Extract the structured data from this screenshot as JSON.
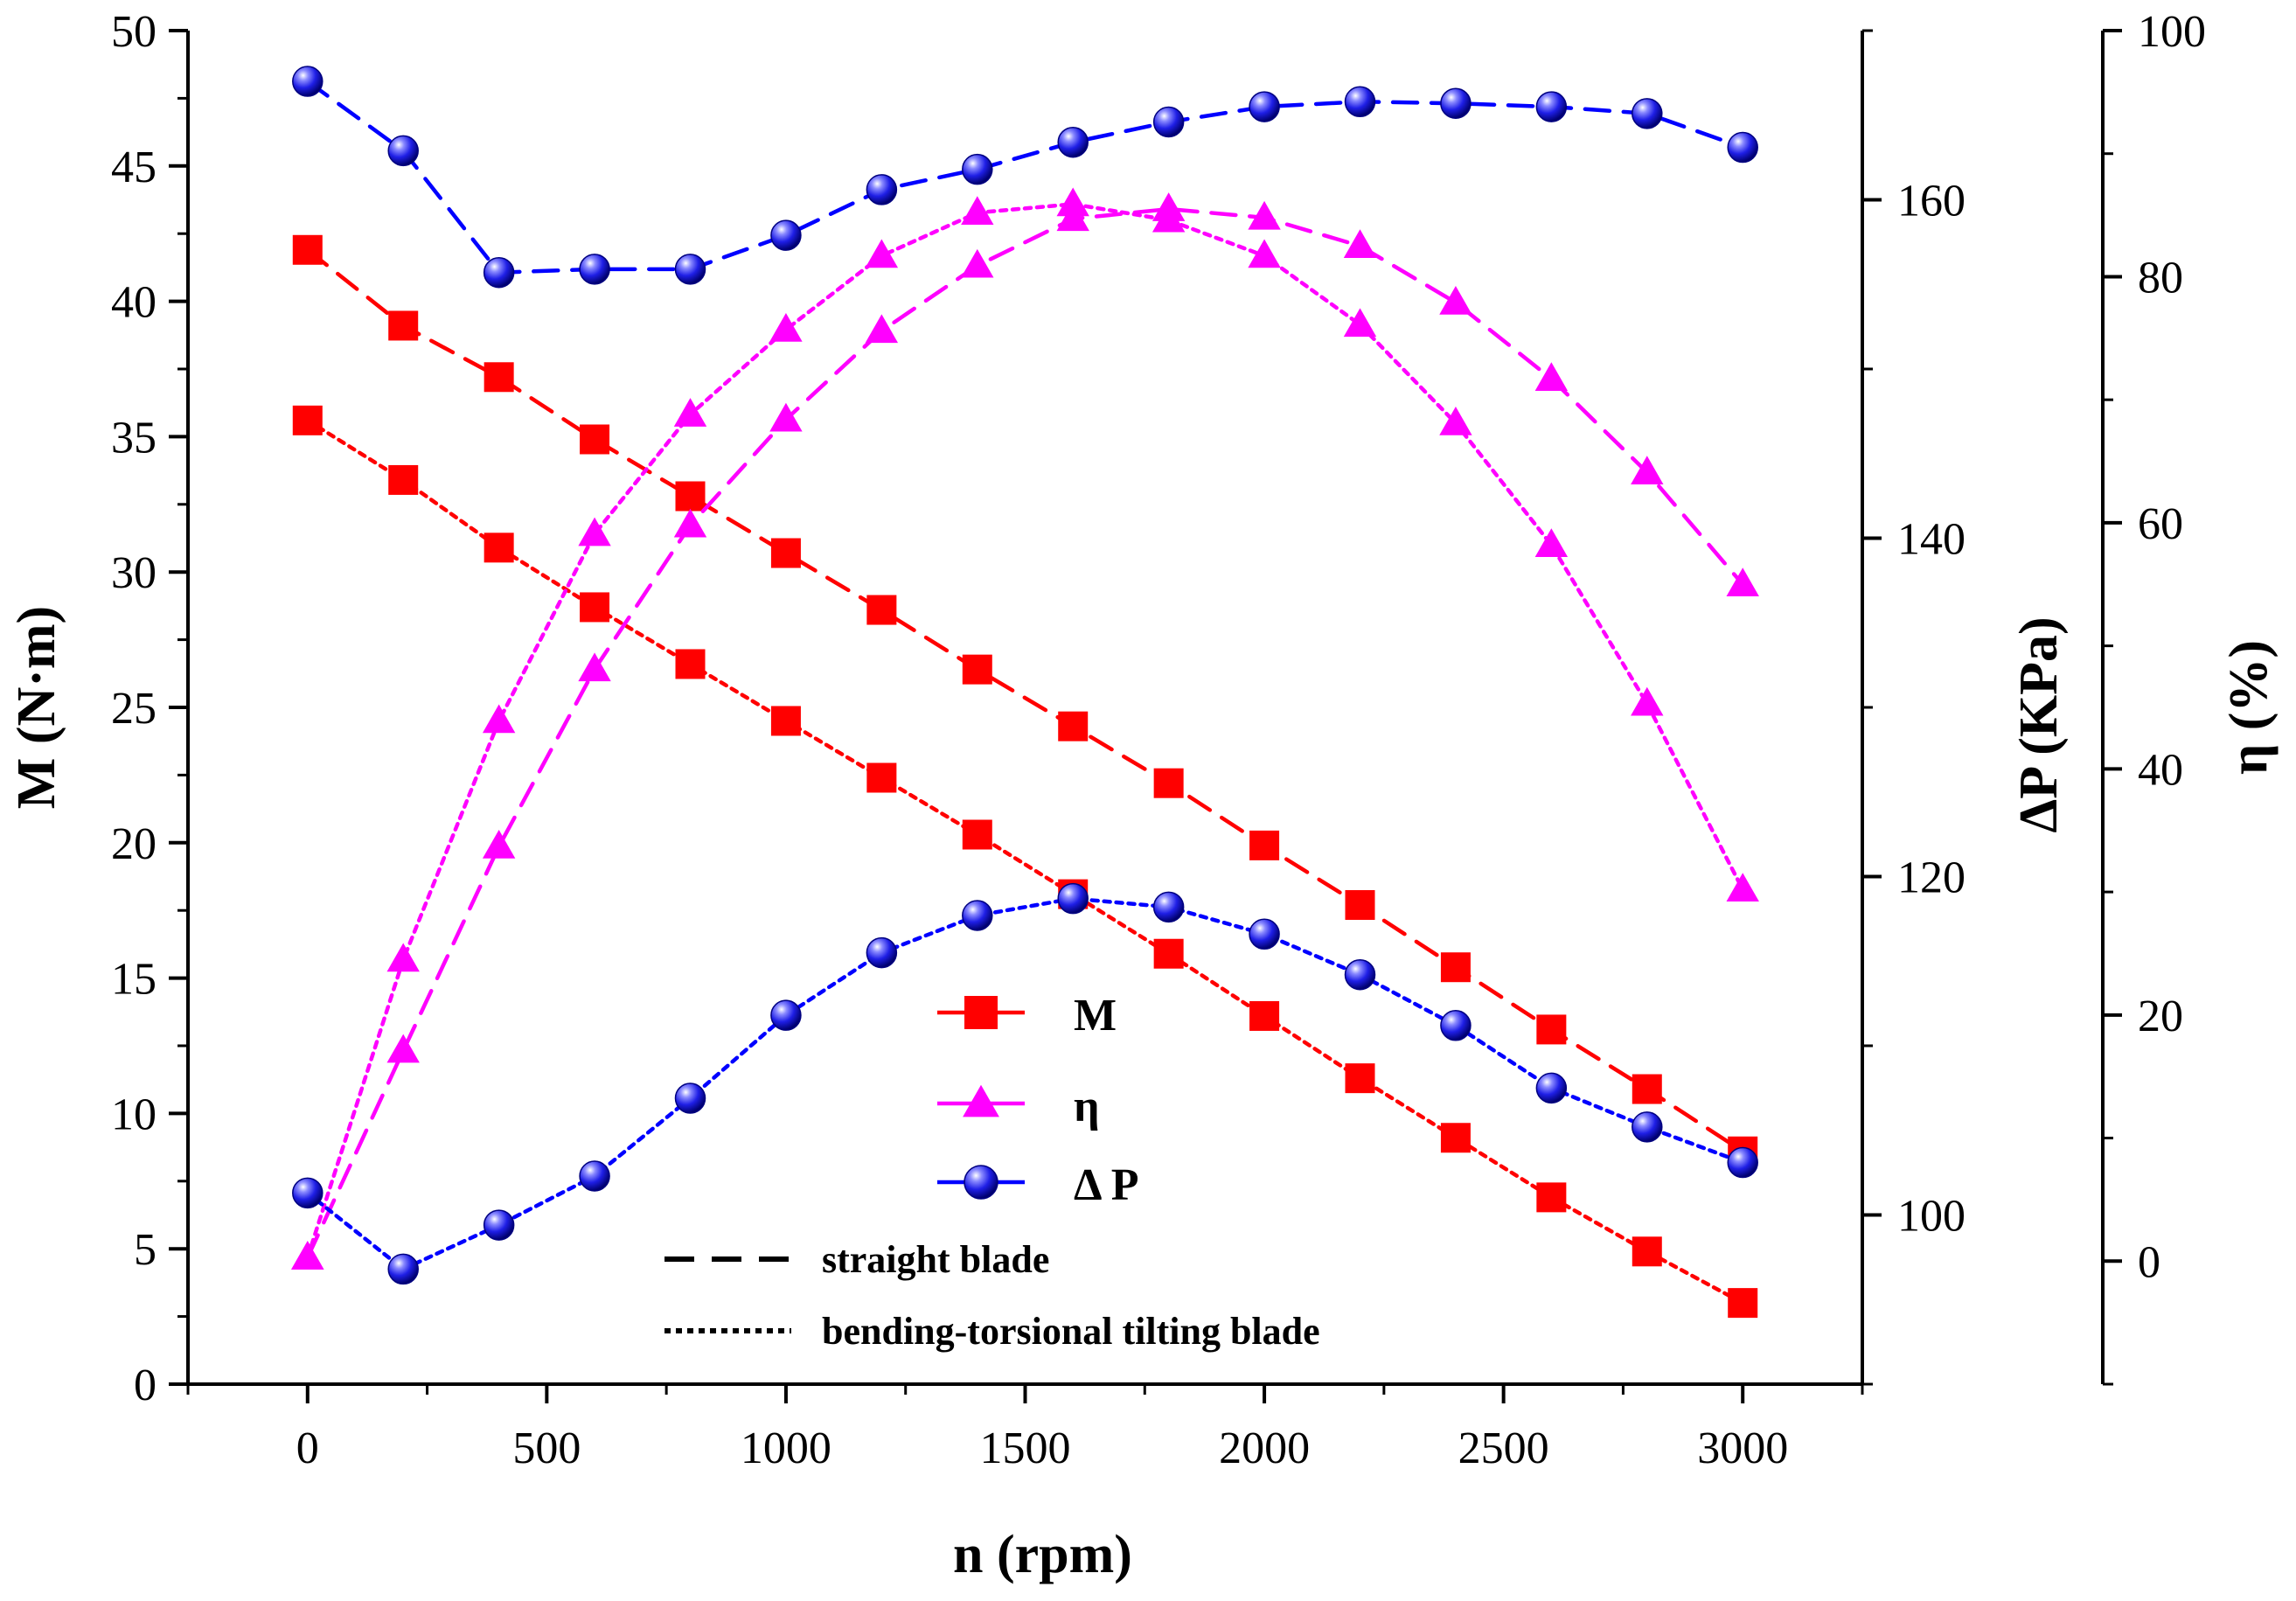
{
  "chart_data": {
    "type": "line",
    "xlabel": "n (rpm)",
    "x_ticks": [
      0,
      500,
      1000,
      1500,
      2000,
      2500,
      3000
    ],
    "xlim": [
      -250,
      3250
    ],
    "axes": {
      "M": {
        "label": "M (N·m)",
        "lim": [
          0,
          50
        ],
        "ticks": [
          0,
          5,
          10,
          15,
          20,
          25,
          30,
          35,
          40,
          45,
          50
        ],
        "side": "left"
      },
      "dP": {
        "label": "ΔP (KPa)",
        "lim": [
          90,
          170
        ],
        "ticks": [
          100,
          120,
          140,
          160
        ],
        "side": "right"
      },
      "eta": {
        "label": "η (%)",
        "lim": [
          -10,
          100
        ],
        "ticks": [
          0,
          20,
          40,
          60,
          80,
          100
        ],
        "side": "right"
      }
    },
    "x": [
      0,
      200,
      400,
      600,
      800,
      1000,
      1200,
      1400,
      1600,
      1800,
      2000,
      2200,
      2400,
      2600,
      2800,
      3000
    ],
    "series": [
      {
        "quantity": "M",
        "blade": "straight blade",
        "axis": "M",
        "color": "#ff0000",
        "marker": "square",
        "dash": "dashed",
        "values": [
          41.9,
          39.1,
          37.2,
          34.9,
          32.8,
          30.7,
          28.6,
          26.4,
          24.3,
          22.2,
          19.9,
          17.7,
          15.4,
          13.1,
          10.9,
          8.6
        ]
      },
      {
        "quantity": "M",
        "blade": "bending-torsional tilting blade",
        "axis": "M",
        "color": "#ff0000",
        "marker": "square",
        "dash": "dotted",
        "values": [
          35.6,
          33.4,
          30.9,
          28.7,
          26.6,
          24.5,
          22.4,
          20.3,
          18.1,
          15.9,
          13.6,
          11.3,
          9.1,
          6.9,
          4.9,
          3.0
        ]
      },
      {
        "quantity": "η",
        "blade": "straight blade",
        "axis": "eta",
        "color": "#ff00ff",
        "marker": "triangle",
        "dash": "dashed",
        "values": [
          0.3,
          17.1,
          33.7,
          48.1,
          59.8,
          68.4,
          75.6,
          80.9,
          84.7,
          85.5,
          84.8,
          82.5,
          77.9,
          71.7,
          64.1,
          55.0
        ]
      },
      {
        "quantity": "η",
        "blade": "bending-torsional tilting blade",
        "axis": "eta",
        "color": "#ff00ff",
        "marker": "triangle",
        "dash": "dotted",
        "values": [
          0.3,
          24.5,
          43.9,
          59.1,
          68.8,
          75.7,
          81.7,
          85.2,
          85.9,
          84.6,
          81.7,
          76.1,
          68.1,
          58.2,
          45.3,
          30.2
        ]
      },
      {
        "quantity": "ΔP",
        "blade": "straight blade",
        "axis": "dP",
        "color": "#0000ff",
        "marker": "circle",
        "dash": "dashed",
        "values": [
          167.0,
          162.9,
          155.7,
          155.9,
          155.9,
          157.9,
          160.6,
          161.8,
          163.4,
          164.6,
          165.5,
          165.8,
          165.7,
          165.5,
          165.1,
          163.1
        ]
      },
      {
        "quantity": "ΔP",
        "blade": "bending-torsional tilting blade",
        "axis": "dP",
        "color": "#0000ff",
        "marker": "circle",
        "dash": "dotted",
        "values": [
          101.3,
          96.8,
          99.4,
          102.3,
          106.9,
          111.8,
          115.5,
          117.7,
          118.7,
          118.2,
          116.6,
          114.2,
          111.2,
          107.5,
          105.2,
          103.1
        ]
      }
    ],
    "legend": {
      "position": "bottom-center",
      "markers": [
        {
          "label": "M",
          "marker": "square",
          "color": "#ff0000"
        },
        {
          "label": "η",
          "marker": "triangle",
          "color": "#ff00ff"
        },
        {
          "label": "Δ P",
          "marker": "circle",
          "color": "#0000ff"
        }
      ],
      "line_styles": [
        {
          "label": "straight blade",
          "dash": "dashed"
        },
        {
          "label": "bending-torsional tilting blade",
          "dash": "dotted"
        }
      ]
    }
  }
}
